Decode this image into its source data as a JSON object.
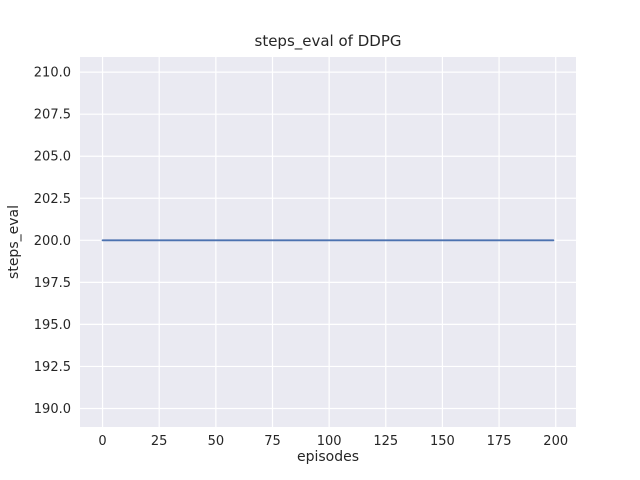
{
  "figure": {
    "background": "#ffffff"
  },
  "chart_data": {
    "type": "line",
    "title": "steps_eval of DDPG",
    "xlabel": "episodes",
    "ylabel": "steps_eval",
    "series": [
      {
        "name": "DDPG steps_eval",
        "x": [
          0,
          199
        ],
        "y": [
          200,
          200
        ],
        "color": "#4c72b0",
        "note": "constant value of 200 steps_eval across episodes 0 to 199"
      }
    ],
    "xticks": [
      0,
      25,
      50,
      75,
      100,
      125,
      150,
      175,
      200
    ],
    "yticks": [
      190.0,
      192.5,
      195.0,
      197.5,
      200.0,
      202.5,
      205.0,
      207.5,
      210.0
    ],
    "ytick_labels": [
      "190.0",
      "192.5",
      "195.0",
      "197.5",
      "200.0",
      "202.5",
      "205.0",
      "207.5",
      "210.0"
    ],
    "xlim": [
      -9.95,
      208.95
    ],
    "ylim": [
      188.9,
      210.9
    ],
    "grid": true,
    "legend": false,
    "plot_bg": "#eaeaf2",
    "grid_color": "#ffffff",
    "line_width": 1.8,
    "text_color": "#262626"
  }
}
